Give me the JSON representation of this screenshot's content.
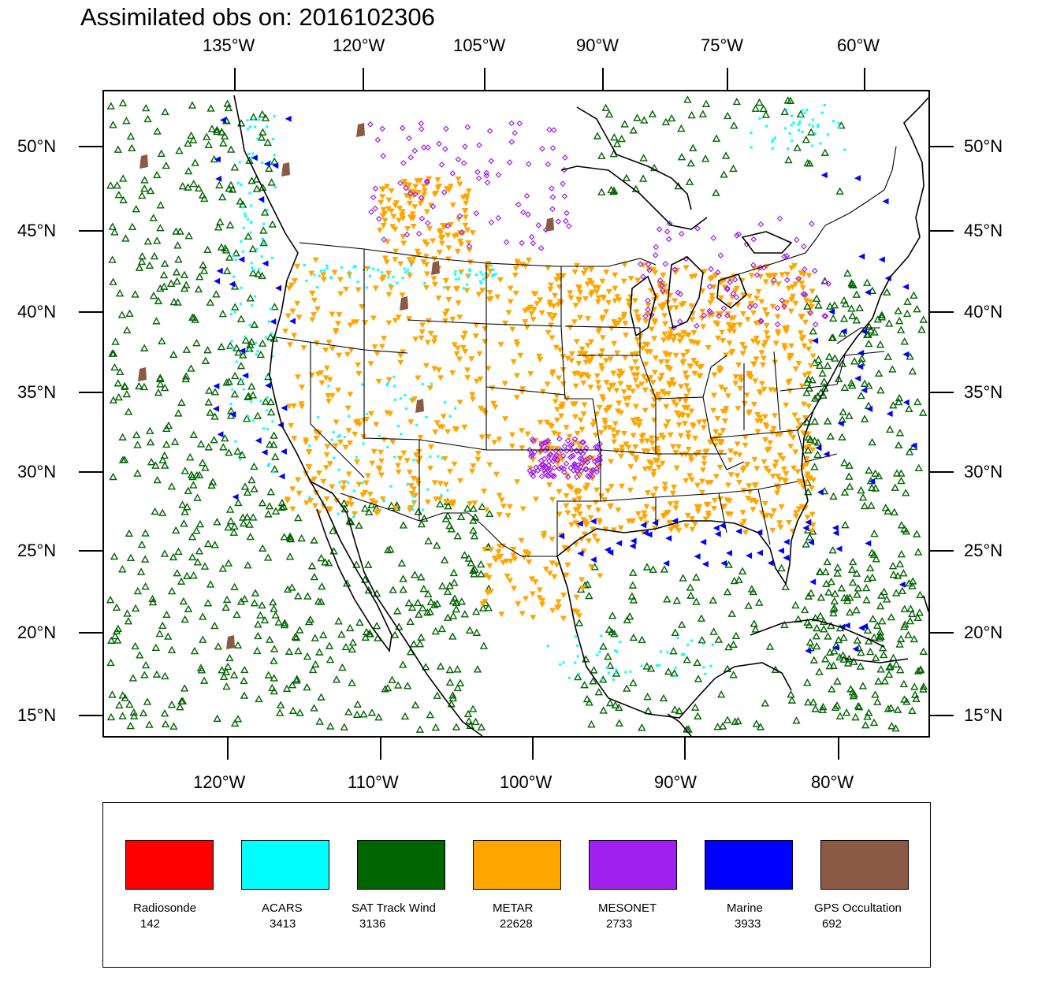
{
  "title": "Assimilated obs on: 2016102306",
  "top_axis_labels": [
    "135°W",
    "120°W",
    "105°W",
    "90°W",
    "75°W",
    "60°W"
  ],
  "bottom_axis_labels": [
    "120°W",
    "110°W",
    "100°W",
    "90°W",
    "80°W"
  ],
  "left_axis_labels": [
    "50°N",
    "45°N",
    "40°N",
    "35°N",
    "30°N",
    "25°N",
    "20°N",
    "15°N"
  ],
  "right_axis_labels": [
    "50°N",
    "45°N",
    "40°N",
    "35°N",
    "30°N",
    "25°N",
    "20°N",
    "15°N"
  ],
  "legend": [
    {
      "name": "Radiosonde",
      "count": "142",
      "color": "#ff0000"
    },
    {
      "name": "ACARS",
      "count": "3413",
      "color": "#00ffff"
    },
    {
      "name": "SAT Track Wind",
      "count": "3136",
      "color": "#006400"
    },
    {
      "name": "METAR",
      "count": "22628",
      "color": "#ffa500"
    },
    {
      "name": "MESONET",
      "count": "2733",
      "color": "#a020f0"
    },
    {
      "name": "Marine",
      "count": "3933",
      "color": "#0000ff"
    },
    {
      "name": "GPS Occultation",
      "count": "692",
      "color": "#8b5a44"
    }
  ]
}
